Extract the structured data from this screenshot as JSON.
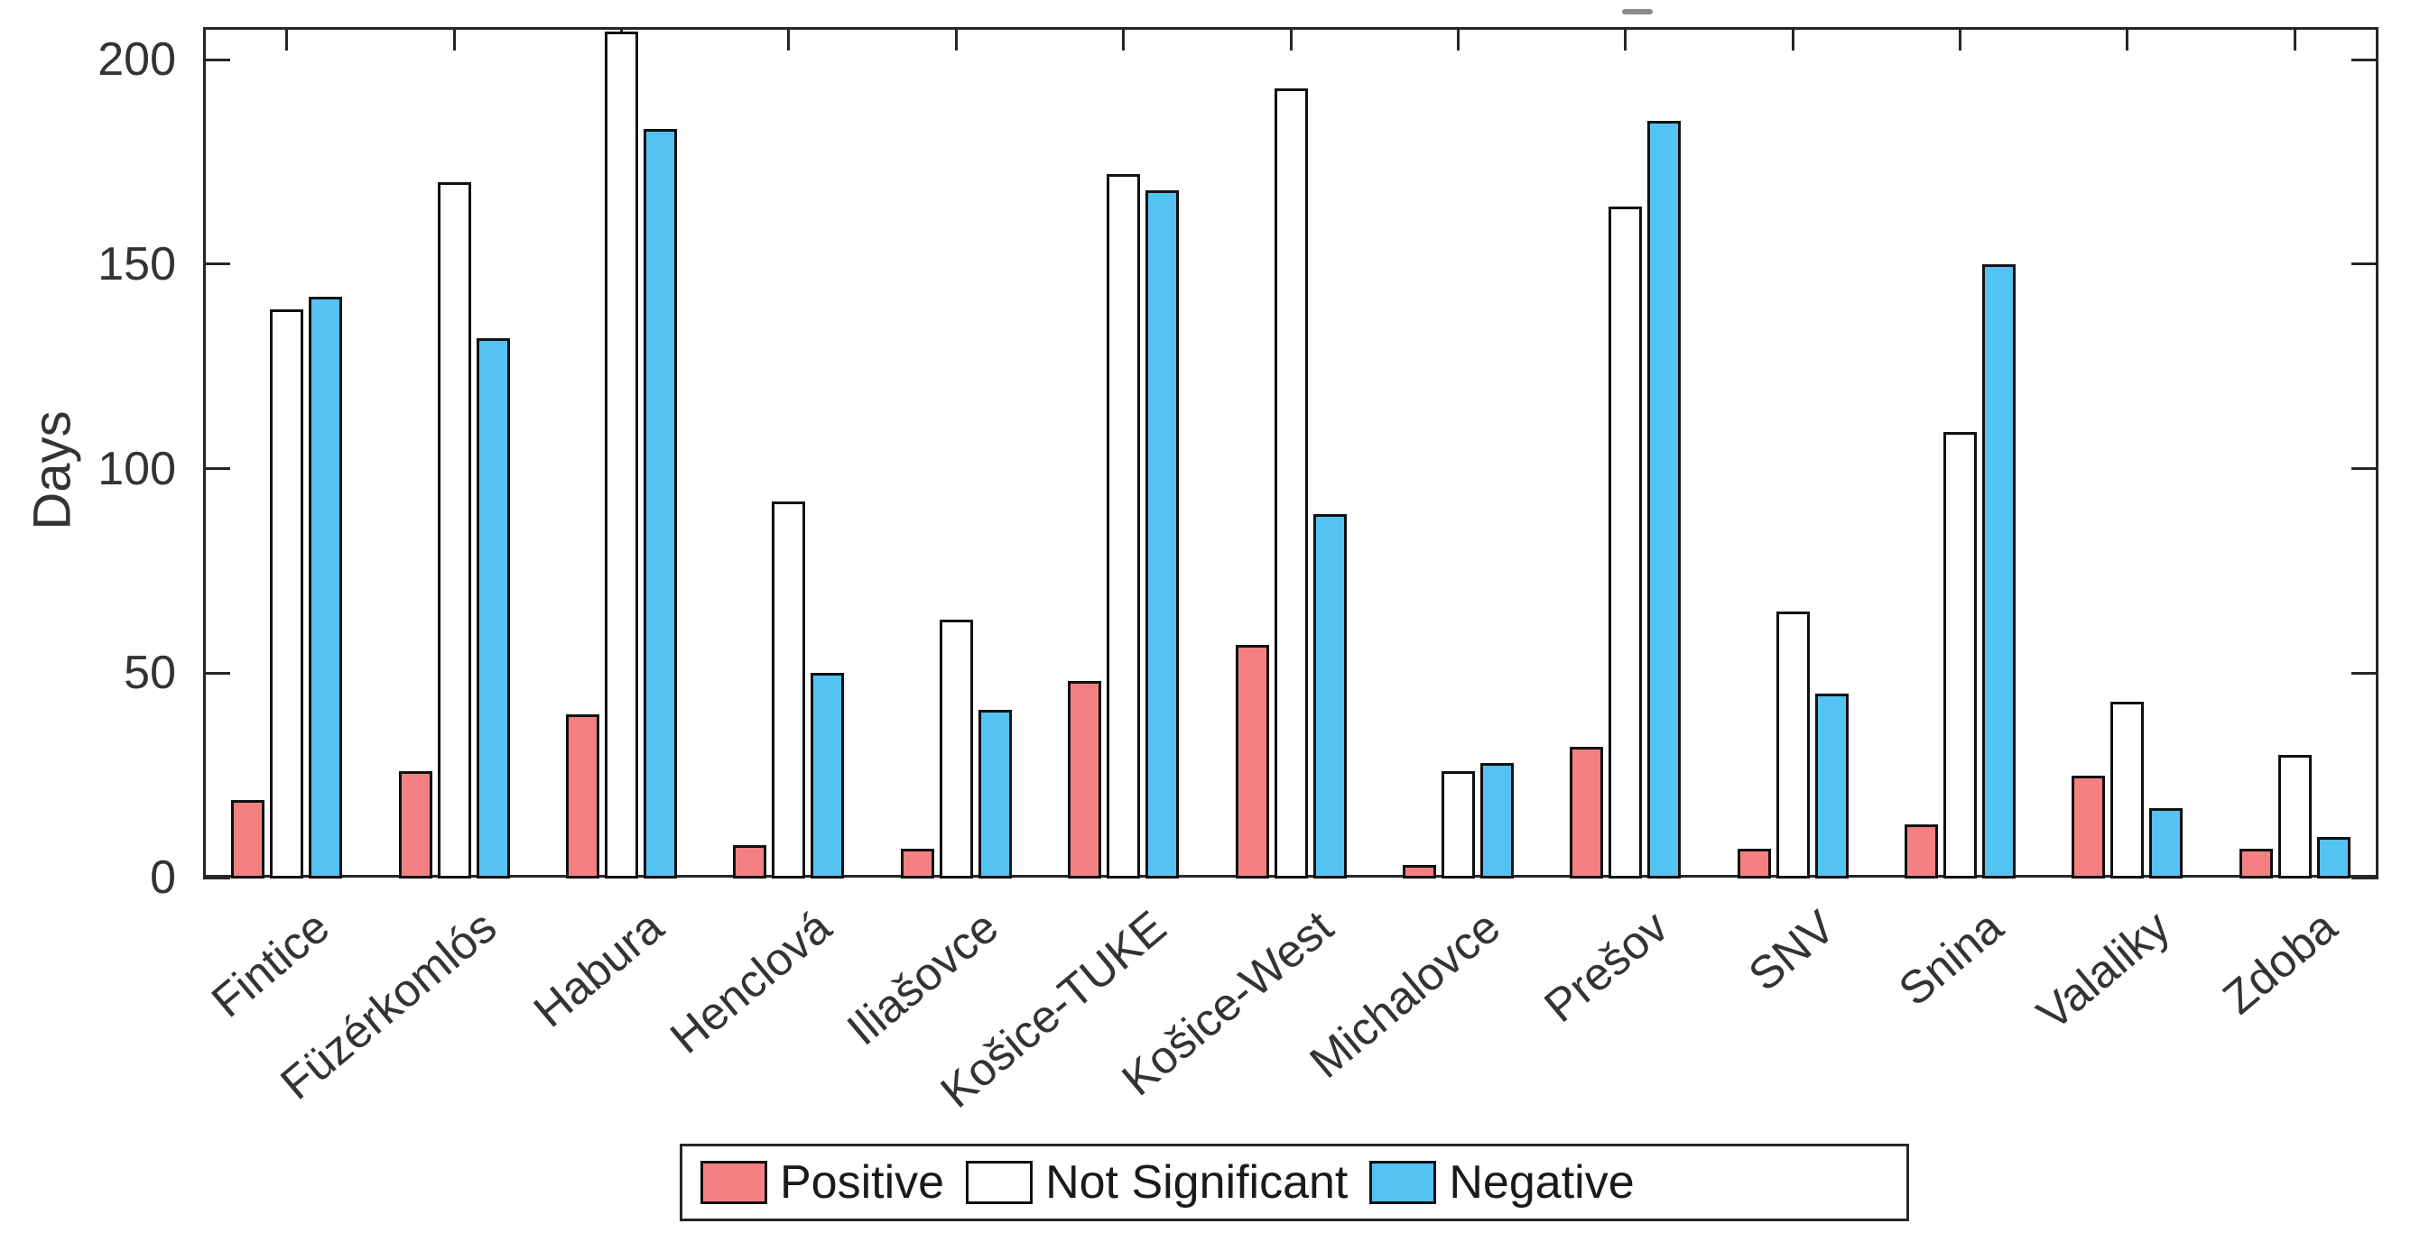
{
  "chart_data": {
    "type": "bar",
    "title": "",
    "xlabel": "",
    "ylabel": "Days",
    "ylim": [
      0,
      208
    ],
    "yticks": [
      0,
      50,
      100,
      150,
      200
    ],
    "grid": false,
    "legend_position": "bottom",
    "categories": [
      "Fintice",
      "Füzérkomlós",
      "Habura",
      "Henclová",
      "Iliašovce",
      "Košice-TUKE",
      "Košice-West",
      "Michalovce",
      "Prešov",
      "SNV",
      "Snina",
      "Valaliky",
      "Zdoba"
    ],
    "series": [
      {
        "name": "Positive",
        "color": "#F58082",
        "values": [
          19,
          26,
          40,
          8,
          7,
          48,
          57,
          3,
          32,
          7,
          13,
          25,
          7
        ]
      },
      {
        "name": "Not Significant",
        "color": "#FFFFFF",
        "values": [
          139,
          170,
          207,
          92,
          63,
          172,
          193,
          26,
          164,
          65,
          109,
          43,
          30
        ]
      },
      {
        "name": "Negative",
        "color": "#54C2F2",
        "values": [
          142,
          132,
          183,
          50,
          41,
          168,
          89,
          28,
          185,
          45,
          150,
          17,
          10
        ]
      }
    ]
  }
}
